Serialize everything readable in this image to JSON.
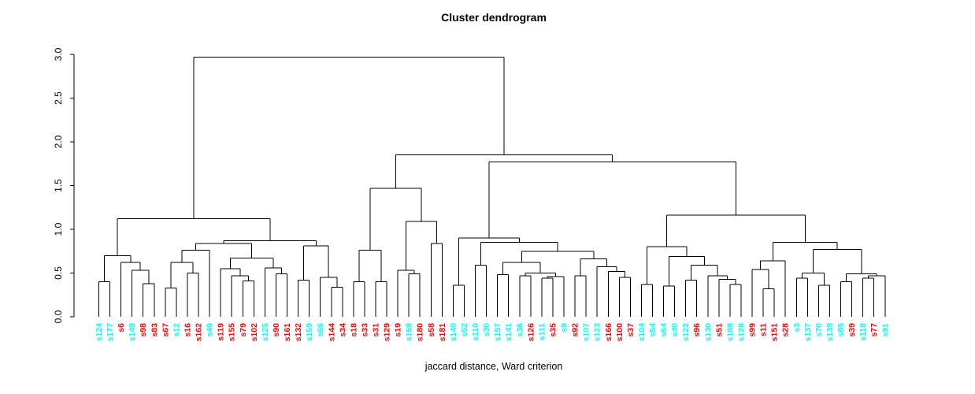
{
  "title": "Cluster dendrogram",
  "chart_data": {
    "type": "dendrogram",
    "title": "Cluster dendrogram",
    "xlabel": "jaccard distance, Ward criterion",
    "ylim": [
      0,
      3
    ],
    "y_ticks": [
      "0.0",
      "0.5",
      "1.0",
      "1.5",
      "2.0",
      "2.5",
      "3.0"
    ],
    "grid": false,
    "palette": {
      "cyan": "#00FFFF",
      "red": "#FF0000",
      "line": "#000000"
    },
    "leaves": [
      {
        "label": "s124",
        "color": "cyan"
      },
      {
        "label": "s177",
        "color": "cyan"
      },
      {
        "label": "s6",
        "color": "red"
      },
      {
        "label": "s148",
        "color": "cyan"
      },
      {
        "label": "s98",
        "color": "red"
      },
      {
        "label": "s83",
        "color": "red"
      },
      {
        "label": "s67",
        "color": "red"
      },
      {
        "label": "s12",
        "color": "cyan"
      },
      {
        "label": "s16",
        "color": "red"
      },
      {
        "label": "s162",
        "color": "red"
      },
      {
        "label": "s49",
        "color": "cyan"
      },
      {
        "label": "s119",
        "color": "red"
      },
      {
        "label": "s155",
        "color": "red"
      },
      {
        "label": "s79",
        "color": "red"
      },
      {
        "label": "s102",
        "color": "red"
      },
      {
        "label": "s125",
        "color": "cyan"
      },
      {
        "label": "s90",
        "color": "red"
      },
      {
        "label": "s161",
        "color": "red"
      },
      {
        "label": "s132",
        "color": "red"
      },
      {
        "label": "s159",
        "color": "cyan"
      },
      {
        "label": "s66",
        "color": "cyan"
      },
      {
        "label": "s144",
        "color": "red"
      },
      {
        "label": "s34",
        "color": "red"
      },
      {
        "label": "s18",
        "color": "red"
      },
      {
        "label": "s33",
        "color": "red"
      },
      {
        "label": "s31",
        "color": "red"
      },
      {
        "label": "s129",
        "color": "red"
      },
      {
        "label": "s19",
        "color": "red"
      },
      {
        "label": "s158",
        "color": "cyan"
      },
      {
        "label": "s180",
        "color": "red"
      },
      {
        "label": "s58",
        "color": "red"
      },
      {
        "label": "s181",
        "color": "red"
      },
      {
        "label": "s140",
        "color": "cyan"
      },
      {
        "label": "s52",
        "color": "cyan"
      },
      {
        "label": "s110",
        "color": "cyan"
      },
      {
        "label": "s30",
        "color": "cyan"
      },
      {
        "label": "s157",
        "color": "cyan"
      },
      {
        "label": "s141",
        "color": "cyan"
      },
      {
        "label": "s36",
        "color": "cyan"
      },
      {
        "label": "s126",
        "color": "red"
      },
      {
        "label": "s111",
        "color": "cyan"
      },
      {
        "label": "s35",
        "color": "red"
      },
      {
        "label": "s9",
        "color": "cyan"
      },
      {
        "label": "s92",
        "color": "red"
      },
      {
        "label": "s107",
        "color": "cyan"
      },
      {
        "label": "s123",
        "color": "cyan"
      },
      {
        "label": "s166",
        "color": "red"
      },
      {
        "label": "s100",
        "color": "red"
      },
      {
        "label": "s37",
        "color": "red"
      },
      {
        "label": "s104",
        "color": "cyan"
      },
      {
        "label": "s54",
        "color": "cyan"
      },
      {
        "label": "s64",
        "color": "cyan"
      },
      {
        "label": "s40",
        "color": "cyan"
      },
      {
        "label": "s122",
        "color": "cyan"
      },
      {
        "label": "s96",
        "color": "red"
      },
      {
        "label": "s130",
        "color": "cyan"
      },
      {
        "label": "s51",
        "color": "red"
      },
      {
        "label": "s188",
        "color": "cyan"
      },
      {
        "label": "s128",
        "color": "cyan"
      },
      {
        "label": "s99",
        "color": "red"
      },
      {
        "label": "s11",
        "color": "red"
      },
      {
        "label": "s151",
        "color": "red"
      },
      {
        "label": "s28",
        "color": "red"
      },
      {
        "label": "s3",
        "color": "cyan"
      },
      {
        "label": "s137",
        "color": "cyan"
      },
      {
        "label": "s70",
        "color": "cyan"
      },
      {
        "label": "s139",
        "color": "cyan"
      },
      {
        "label": "s85",
        "color": "cyan"
      },
      {
        "label": "s39",
        "color": "red"
      },
      {
        "label": "s118",
        "color": "cyan"
      },
      {
        "label": "s77",
        "color": "red"
      },
      {
        "label": "s91",
        "color": "cyan"
      }
    ],
    "tree": {
      "h": 2.97,
      "c": [
        {
          "h": 1.12,
          "c": [
            {
              "h": 0.7,
              "c": [
                {
                  "h": 0.4,
                  "c": [
                    "s124",
                    "s177"
                  ]
                },
                {
                  "h": 0.62,
                  "c": [
                    "s6",
                    {
                      "h": 0.53,
                      "c": [
                        "s148",
                        {
                          "h": 0.38,
                          "c": [
                            "s98",
                            "s83"
                          ]
                        }
                      ]
                    }
                  ]
                }
              ]
            },
            {
              "h": 0.87,
              "c": [
                {
                  "h": 0.84,
                  "c": [
                    {
                      "h": 0.76,
                      "c": [
                        {
                          "h": 0.62,
                          "c": [
                            {
                              "h": 0.33,
                              "c": [
                                "s67",
                                "s12"
                              ]
                            },
                            {
                              "h": 0.5,
                              "c": [
                                "s16",
                                "s162"
                              ]
                            }
                          ]
                        },
                        "s49"
                      ]
                    },
                    {
                      "h": 0.67,
                      "c": [
                        {
                          "h": 0.55,
                          "c": [
                            "s119",
                            {
                              "h": 0.47,
                              "c": [
                                "s155",
                                {
                                  "h": 0.41,
                                  "c": [
                                    "s79",
                                    "s102"
                                  ]
                                }
                              ]
                            }
                          ]
                        },
                        {
                          "h": 0.56,
                          "c": [
                            "s125",
                            {
                              "h": 0.49,
                              "c": [
                                "s90",
                                "s161"
                              ]
                            }
                          ]
                        }
                      ]
                    }
                  ]
                },
                {
                  "h": 0.81,
                  "c": [
                    {
                      "h": 0.42,
                      "c": [
                        "s132",
                        "s159"
                      ]
                    },
                    {
                      "h": 0.45,
                      "c": [
                        "s66",
                        {
                          "h": 0.34,
                          "c": [
                            "s144",
                            "s34"
                          ]
                        }
                      ]
                    }
                  ]
                }
              ]
            }
          ]
        },
        {
          "h": 1.85,
          "c": [
            {
              "h": 1.47,
              "c": [
                {
                  "h": 0.76,
                  "c": [
                    {
                      "h": 0.4,
                      "c": [
                        "s18",
                        "s33"
                      ]
                    },
                    {
                      "h": 0.4,
                      "c": [
                        "s31",
                        "s129"
                      ]
                    }
                  ]
                },
                {
                  "h": 1.09,
                  "c": [
                    {
                      "h": 0.53,
                      "c": [
                        "s19",
                        {
                          "h": 0.49,
                          "c": [
                            "s158",
                            "s180"
                          ]
                        }
                      ]
                    },
                    {
                      "h": 0.84,
                      "c": [
                        "s58",
                        "s181"
                      ]
                    }
                  ]
                }
              ]
            },
            {
              "h": 1.77,
              "c": [
                {
                  "h": 0.9,
                  "c": [
                    {
                      "h": 0.36,
                      "c": [
                        "s140",
                        "s52"
                      ]
                    },
                    {
                      "h": 0.85,
                      "c": [
                        {
                          "h": 0.59,
                          "c": [
                            "s110",
                            "s30"
                          ]
                        },
                        {
                          "h": 0.75,
                          "c": [
                            {
                              "h": 0.62,
                              "c": [
                                {
                                  "h": 0.48,
                                  "c": [
                                    "s157",
                                    "s141"
                                  ]
                                },
                                {
                                  "h": 0.5,
                                  "c": [
                                    {
                                      "h": 0.47,
                                      "c": [
                                        "s36",
                                        "s126"
                                      ]
                                    },
                                    {
                                      "h": 0.46,
                                      "c": [
                                        {
                                          "h": 0.44,
                                          "c": [
                                            "s111",
                                            "s35"
                                          ]
                                        },
                                        "s9"
                                      ]
                                    }
                                  ]
                                }
                              ]
                            },
                            {
                              "h": 0.66,
                              "c": [
                                {
                                  "h": 0.47,
                                  "c": [
                                    "s92",
                                    "s107"
                                  ]
                                },
                                {
                                  "h": 0.57,
                                  "c": [
                                    "s123",
                                    {
                                      "h": 0.52,
                                      "c": [
                                        "s166",
                                        {
                                          "h": 0.45,
                                          "c": [
                                            "s100",
                                            "s37"
                                          ]
                                        }
                                      ]
                                    }
                                  ]
                                }
                              ]
                            }
                          ]
                        }
                      ]
                    }
                  ]
                },
                {
                  "h": 1.16,
                  "c": [
                    {
                      "h": 0.8,
                      "c": [
                        {
                          "h": 0.37,
                          "c": [
                            "s104",
                            "s54"
                          ]
                        },
                        {
                          "h": 0.69,
                          "c": [
                            {
                              "h": 0.35,
                              "c": [
                                "s64",
                                "s40"
                              ]
                            },
                            {
                              "h": 0.59,
                              "c": [
                                {
                                  "h": 0.42,
                                  "c": [
                                    "s122",
                                    "s96"
                                  ]
                                },
                                {
                                  "h": 0.47,
                                  "c": [
                                    "s130",
                                    {
                                      "h": 0.43,
                                      "c": [
                                        "s51",
                                        {
                                          "h": 0.37,
                                          "c": [
                                            "s188",
                                            "s128"
                                          ]
                                        }
                                      ]
                                    }
                                  ]
                                }
                              ]
                            }
                          ]
                        }
                      ]
                    },
                    {
                      "h": 0.85,
                      "c": [
                        {
                          "h": 0.64,
                          "c": [
                            {
                              "h": 0.54,
                              "c": [
                                "s99",
                                {
                                  "h": 0.32,
                                  "c": [
                                    "s11",
                                    "s151"
                                  ]
                                }
                              ]
                            },
                            "s28"
                          ]
                        },
                        {
                          "h": 0.77,
                          "c": [
                            {
                              "h": 0.5,
                              "c": [
                                {
                                  "h": 0.44,
                                  "c": [
                                    "s3",
                                    "s137"
                                  ]
                                },
                                {
                                  "h": 0.36,
                                  "c": [
                                    "s70",
                                    "s139"
                                  ]
                                }
                              ]
                            },
                            {
                              "h": 0.49,
                              "c": [
                                {
                                  "h": 0.4,
                                  "c": [
                                    "s85",
                                    "s39"
                                  ]
                                },
                                {
                                  "h": 0.47,
                                  "c": [
                                    {
                                      "h": 0.44,
                                      "c": [
                                        "s118",
                                        "s77"
                                      ]
                                    },
                                    "s91"
                                  ]
                                }
                              ]
                            }
                          ]
                        }
                      ]
                    }
                  ]
                }
              ]
            }
          ]
        }
      ]
    }
  }
}
